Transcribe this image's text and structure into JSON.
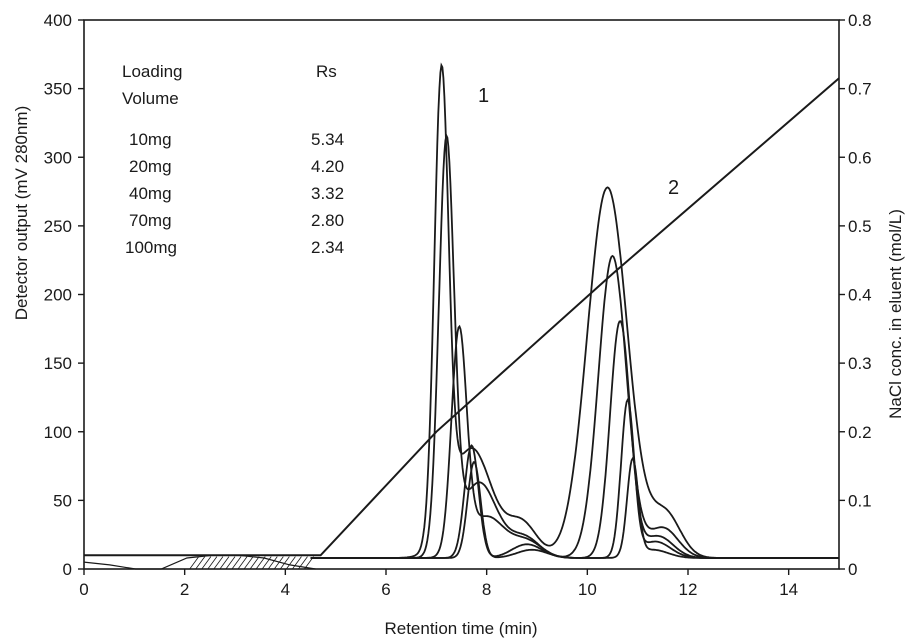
{
  "chart_data": {
    "type": "line",
    "xlabel": "Retention time (min)",
    "ylabel": "Detector output (mV 280nm)",
    "y2label": "NaCl conc. in eluent (mol/L)",
    "xlim": [
      0,
      15
    ],
    "ylim": [
      0,
      400
    ],
    "y2lim": [
      0,
      0.8
    ],
    "grid": false,
    "x_ticks": [
      "0",
      "2",
      "4",
      "6",
      "8",
      "10",
      "12",
      "14"
    ],
    "y_ticks": [
      "0",
      "50",
      "100",
      "150",
      "200",
      "250",
      "300",
      "350",
      "400"
    ],
    "y2_ticks": [
      "0",
      "0.1",
      "0.2",
      "0.3",
      "0.4",
      "0.5",
      "0.6",
      "0.7",
      "0.8"
    ],
    "peak_labels": [
      "1",
      "2"
    ],
    "table": {
      "headers": [
        "Loading\nVolume",
        "Rs"
      ],
      "header_col1_line1": "Loading",
      "header_col1_line2": "Volume",
      "header_col2": "Rs",
      "rows": [
        {
          "loading": "10mg",
          "rs": "5.34"
        },
        {
          "loading": "20mg",
          "rs": "4.20"
        },
        {
          "loading": "40mg",
          "rs": "3.32"
        },
        {
          "loading": "70mg",
          "rs": "2.80"
        },
        {
          "loading": "100mg",
          "rs": "2.34"
        }
      ]
    },
    "series": [
      {
        "loading": "10mg",
        "baseline": 8,
        "peaks": [
          {
            "center": 7.75,
            "height": 70,
            "sigma": 0.13
          },
          {
            "center": 8.9,
            "height": 6,
            "sigma": 0.3
          },
          {
            "center": 10.9,
            "height": 70,
            "sigma": 0.11
          },
          {
            "center": 11.3,
            "height": 6,
            "sigma": 0.3
          }
        ]
      },
      {
        "loading": "20mg",
        "baseline": 8,
        "peaks": [
          {
            "center": 7.7,
            "height": 82,
            "sigma": 0.14
          },
          {
            "center": 8.8,
            "height": 10,
            "sigma": 0.3
          },
          {
            "center": 10.8,
            "height": 113,
            "sigma": 0.13
          },
          {
            "center": 11.35,
            "height": 12,
            "sigma": 0.3
          }
        ]
      },
      {
        "loading": "40mg",
        "baseline": 8,
        "peaks": [
          {
            "center": 7.45,
            "height": 160,
            "sigma": 0.15
          },
          {
            "center": 8.0,
            "height": 30,
            "sigma": 0.35
          },
          {
            "center": 8.8,
            "height": 12,
            "sigma": 0.3
          },
          {
            "center": 10.65,
            "height": 172,
            "sigma": 0.2
          },
          {
            "center": 11.4,
            "height": 16,
            "sigma": 0.3
          }
        ]
      },
      {
        "loading": "70mg",
        "baseline": 8,
        "peaks": [
          {
            "center": 7.2,
            "height": 298,
            "sigma": 0.15
          },
          {
            "center": 7.85,
            "height": 55,
            "sigma": 0.35
          },
          {
            "center": 8.75,
            "height": 15,
            "sigma": 0.3
          },
          {
            "center": 10.5,
            "height": 220,
            "sigma": 0.28
          },
          {
            "center": 11.5,
            "height": 22,
            "sigma": 0.3
          }
        ]
      },
      {
        "loading": "100mg",
        "baseline": 8,
        "peaks": [
          {
            "center": 7.1,
            "height": 333,
            "sigma": 0.14
          },
          {
            "center": 7.7,
            "height": 80,
            "sigma": 0.4
          },
          {
            "center": 8.7,
            "height": 25,
            "sigma": 0.3
          },
          {
            "center": 10.4,
            "height": 270,
            "sigma": 0.4
          },
          {
            "center": 11.55,
            "height": 32,
            "sigma": 0.3
          }
        ]
      }
    ],
    "nacl_gradient": {
      "axis": "right",
      "points": [
        [
          0,
          0.02
        ],
        [
          4.7,
          0.02
        ],
        [
          7.0,
          0.2
        ],
        [
          10.5,
          0.43
        ],
        [
          15,
          0.715
        ]
      ]
    },
    "early_baseline": {
      "values": [
        5,
        3,
        0,
        0,
        8,
        10,
        10,
        8,
        3,
        0
      ]
    }
  }
}
